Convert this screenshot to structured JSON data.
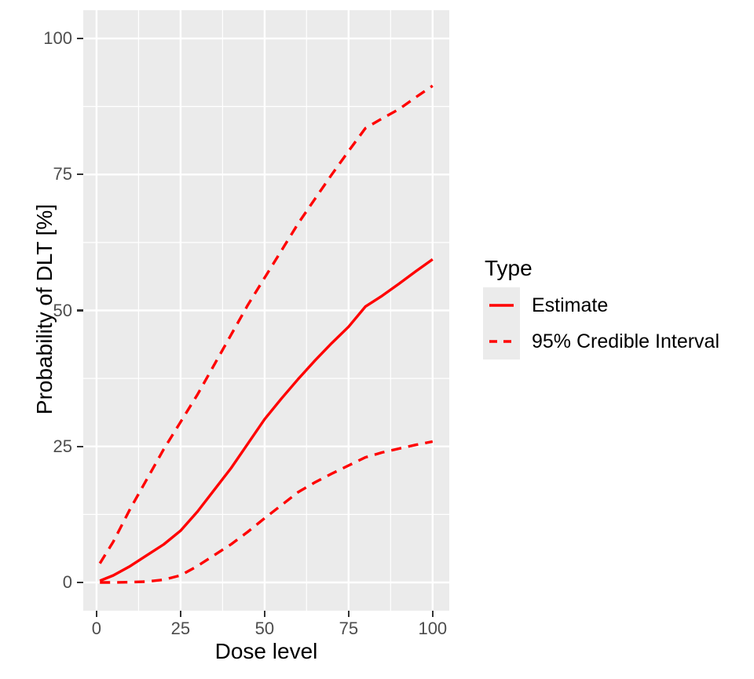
{
  "figure": {
    "background": "#FFFFFF",
    "panel_bg": "#EBEBEB",
    "grid_color": "#FFFFFF",
    "accent": "#FF0000",
    "tick_mark_color": "#333333",
    "tick_label_color": "#4D4D4D",
    "axis_title_color": "#000000"
  },
  "chart_data": {
    "type": "line",
    "title": "",
    "xlabel": "Dose level",
    "ylabel": "Probability of DLT [%]",
    "xlim": [
      -3.95,
      104.95
    ],
    "ylim": [
      -5.2,
      105.2
    ],
    "x_ticks": [
      0,
      25,
      50,
      75,
      100
    ],
    "y_ticks": [
      0,
      25,
      50,
      75,
      100
    ],
    "x_minor_ticks": [
      12.5,
      37.5,
      62.5,
      87.5
    ],
    "y_minor_ticks": [
      12.5,
      37.5,
      62.5,
      87.5
    ],
    "grid": true,
    "legend": {
      "title": "Type",
      "position": "right",
      "entries": [
        {
          "label": "Estimate",
          "style": "solid"
        },
        {
          "label": "95% Credible Interval",
          "style": "dashed"
        }
      ]
    },
    "x": [
      1,
      5,
      10,
      15,
      20,
      25,
      30,
      35,
      40,
      45,
      50,
      55,
      60,
      65,
      70,
      75,
      80,
      85,
      90,
      95,
      100
    ],
    "series": [
      {
        "name": "Estimate",
        "style": "solid",
        "values": [
          0.3,
          1.3,
          3.0,
          5.0,
          7.0,
          9.5,
          13.0,
          17.0,
          21.0,
          25.5,
          30.0,
          33.8,
          37.4,
          40.8,
          44.0,
          47.0,
          50.7,
          52.7,
          54.9,
          57.2,
          59.4
        ]
      },
      {
        "name": "95% Credible Interval (upper)",
        "style": "dashed",
        "values": [
          3.5,
          7.5,
          13.5,
          19.0,
          24.5,
          29.5,
          34.5,
          40.0,
          45.5,
          51.0,
          56.0,
          61.0,
          66.0,
          70.5,
          75.0,
          79.3,
          83.5,
          85.3,
          87.0,
          89.2,
          91.3
        ]
      },
      {
        "name": "95% Credible Interval (lower)",
        "style": "dashed",
        "values": [
          0.0,
          0.0,
          0.05,
          0.15,
          0.5,
          1.3,
          3.0,
          5.0,
          7.0,
          9.3,
          11.8,
          14.2,
          16.6,
          18.4,
          20.0,
          21.5,
          23.0,
          23.9,
          24.6,
          25.3,
          25.9
        ]
      }
    ]
  }
}
